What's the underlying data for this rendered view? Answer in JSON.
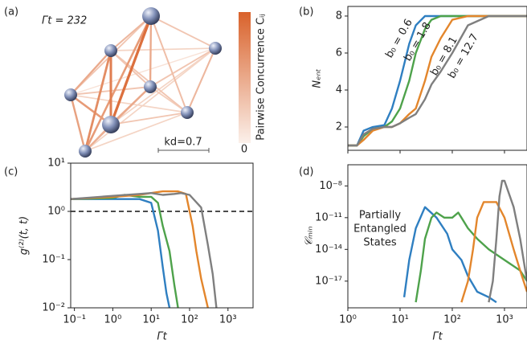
{
  "chart_data": [
    {
      "type": "network",
      "panel_label": "(a)",
      "title": "Γt = 232",
      "colorbar_label": "Pairwise Concurrence Cᵢⱼ",
      "clim": [
        0,
        1
      ],
      "cbar_ticks": [
        0
      ],
      "scale_label": "kd=0.7",
      "low_color": "#fbf0ea",
      "high_color": "#d9622b",
      "edges": [
        [
          0,
          1,
          0.4
        ],
        [
          0,
          2,
          0.3
        ],
        [
          0,
          3,
          0.5
        ],
        [
          0,
          4,
          0.3
        ],
        [
          0,
          5,
          0.35
        ],
        [
          0,
          6,
          0.9
        ],
        [
          0,
          7,
          0.6
        ],
        [
          1,
          2,
          0.2
        ],
        [
          1,
          3,
          0.3
        ],
        [
          1,
          4,
          0.5
        ],
        [
          1,
          5,
          0.3
        ],
        [
          1,
          6,
          0.8
        ],
        [
          1,
          7,
          0.7
        ],
        [
          2,
          3,
          0.3
        ],
        [
          2,
          5,
          0.4
        ],
        [
          2,
          6,
          0.2
        ],
        [
          2,
          7,
          0.2
        ],
        [
          3,
          4,
          0.3
        ],
        [
          3,
          5,
          0.25
        ],
        [
          3,
          6,
          0.5
        ],
        [
          3,
          7,
          0.4
        ],
        [
          4,
          5,
          0.2
        ],
        [
          4,
          6,
          0.6
        ],
        [
          4,
          7,
          0.55
        ],
        [
          5,
          6,
          0.3
        ],
        [
          5,
          7,
          0.2
        ],
        [
          6,
          7,
          0.45
        ],
        [
          2,
          4,
          0.1
        ]
      ]
    },
    {
      "type": "line",
      "panel_label": "(b)",
      "ylabel": "Nₑₙₜ",
      "xscale": "log",
      "yscale": "linear",
      "xlim": [
        1,
        2700
      ],
      "ylim": [
        0.74,
        8.52
      ],
      "xticks": [
        1,
        10,
        100,
        1000
      ],
      "xticklabels": false,
      "yticks": [
        2,
        4,
        6,
        8
      ],
      "x": [
        1,
        1.5,
        2,
        3,
        5,
        7,
        10,
        15,
        20,
        30,
        40,
        60,
        100,
        200,
        500,
        1000,
        2700
      ],
      "series": [
        {
          "name": "b₀ = 0.6",
          "color": "#2f7fc1",
          "values": [
            1,
            1,
            1.8,
            2,
            2.1,
            3,
            4.5,
            6.5,
            7.5,
            8,
            8,
            8,
            8,
            8,
            8,
            8,
            8
          ]
        },
        {
          "name": "b₀ = 1.8",
          "color": "#4ea24b",
          "values": [
            1,
            1,
            1.5,
            1.9,
            2,
            2.3,
            3,
            4.5,
            6,
            7.3,
            7.8,
            8,
            8,
            8,
            8,
            8,
            8
          ]
        },
        {
          "name": "b₀ = 8.1",
          "color": "#e3862c",
          "values": [
            1,
            1,
            1.3,
            1.8,
            2,
            2,
            2.2,
            2.7,
            3,
            4.5,
            5.8,
            6.8,
            7.8,
            8,
            8,
            8,
            8
          ]
        },
        {
          "name": "b₀ = 12.7",
          "color": "#7f7f7f",
          "values": [
            1,
            1,
            1.6,
            1.9,
            2,
            2,
            2.2,
            2.5,
            2.7,
            3.5,
            4.3,
            5,
            6,
            7.5,
            8,
            8,
            8
          ]
        }
      ]
    },
    {
      "type": "line",
      "panel_label": "(c)",
      "ylabel": "g⁽²⁾(t, t)",
      "xlabel": "Γt",
      "xscale": "log",
      "yscale": "log",
      "xlim": [
        0.08,
        4500
      ],
      "ylim": [
        0.01,
        10
      ],
      "hline": 1,
      "xticks": [
        {
          "value": 0.1,
          "label": "10⁻¹"
        },
        {
          "value": 1,
          "label": "10⁰"
        },
        {
          "value": 10,
          "label": "10¹"
        },
        {
          "value": 100,
          "label": "10²"
        },
        {
          "value": 1000,
          "label": "10³"
        }
      ],
      "yticks": [
        {
          "value": 0.01,
          "label": "10⁻²"
        },
        {
          "value": 0.1,
          "label": "10⁻¹"
        },
        {
          "value": 1,
          "label": "10⁰"
        },
        {
          "value": 10,
          "label": "10¹"
        }
      ],
      "series": [
        {
          "color": "#2f7fc1",
          "x": [
            0.08,
            1,
            5,
            10,
            15,
            20,
            25,
            30
          ],
          "values": [
            1.8,
            1.8,
            1.8,
            1.5,
            0.4,
            0.07,
            0.02,
            0.01
          ]
        },
        {
          "color": "#4ea24b",
          "x": [
            0.08,
            1,
            2,
            5,
            10,
            15,
            20,
            30,
            40,
            50
          ],
          "values": [
            1.8,
            1.9,
            2.2,
            2,
            2,
            1.5,
            0.5,
            0.15,
            0.03,
            0.01
          ]
        },
        {
          "color": "#e3862c",
          "x": [
            0.08,
            1,
            5,
            10,
            20,
            50,
            80,
            100,
            120,
            150,
            200,
            300
          ],
          "values": [
            1.8,
            2,
            2.2,
            2.4,
            2.6,
            2.6,
            2.3,
            1,
            0.5,
            0.15,
            0.04,
            0.01
          ]
        },
        {
          "color": "#7f7f7f",
          "x": [
            0.08,
            1,
            5,
            10,
            20,
            40,
            60,
            100,
            200,
            300,
            400,
            500
          ],
          "values": [
            1.8,
            2.1,
            2.3,
            2.4,
            2.2,
            2.3,
            2.4,
            2.2,
            1.2,
            0.2,
            0.05,
            0.01
          ]
        }
      ]
    },
    {
      "type": "line",
      "panel_label": "(d)",
      "ylabel": "𝒞ₘᵢₙ",
      "xlabel": "Γt",
      "xscale": "log",
      "yscale": "log",
      "xlim": [
        1,
        2700
      ],
      "ylim": [
        3e-20,
        1e-06
      ],
      "annotation": [
        "Partially",
        "Entangled",
        "States"
      ],
      "xticks": [
        {
          "value": 1,
          "label": "10⁰"
        },
        {
          "value": 10,
          "label": "10¹"
        },
        {
          "value": 100,
          "label": "10²"
        },
        {
          "value": 1000,
          "label": "10³"
        }
      ],
      "yticks": [
        {
          "value": 1e-17,
          "label": "10⁻¹⁷"
        },
        {
          "value": 1e-14,
          "label": "10⁻¹⁴"
        },
        {
          "value": 1e-11,
          "label": "10⁻¹¹"
        },
        {
          "value": 1e-08,
          "label": "10⁻⁸"
        }
      ],
      "series": [
        {
          "color": "#2f7fc1",
          "x": [
            12,
            15,
            20,
            30,
            50,
            80,
            100,
            150,
            200,
            300,
            500,
            700
          ],
          "values": [
            3e-19,
            1e-15,
            1e-12,
            1e-10,
            1e-11,
            3e-13,
            1e-14,
            1e-15,
            3e-17,
            1e-18,
            3e-19,
            1e-19
          ]
        },
        {
          "color": "#4ea24b",
          "x": [
            20,
            25,
            30,
            40,
            50,
            70,
            100,
            130,
            150,
            200,
            300,
            500,
            1000,
            2000,
            2700
          ],
          "values": [
            1e-19,
            1e-16,
            1e-13,
            1e-11,
            3e-11,
            1e-11,
            1e-11,
            3e-11,
            1e-11,
            1e-12,
            1e-13,
            1e-14,
            1e-15,
            1e-16,
            1e-17
          ]
        },
        {
          "color": "#e3862c",
          "x": [
            150,
            200,
            250,
            300,
            400,
            500,
            700,
            1000,
            1500,
            2000,
            2700
          ],
          "values": [
            1e-19,
            1e-17,
            1e-14,
            1e-11,
            3e-10,
            3e-10,
            3e-10,
            1e-11,
            1e-14,
            1e-16,
            1e-18
          ]
        },
        {
          "color": "#7f7f7f",
          "x": [
            500,
            600,
            700,
            800,
            900,
            1000,
            1500,
            2000,
            2700
          ],
          "values": [
            1e-19,
            1e-17,
            1e-13,
            1e-09,
            3e-08,
            3e-08,
            1e-10,
            1e-13,
            1e-17
          ]
        }
      ]
    }
  ]
}
